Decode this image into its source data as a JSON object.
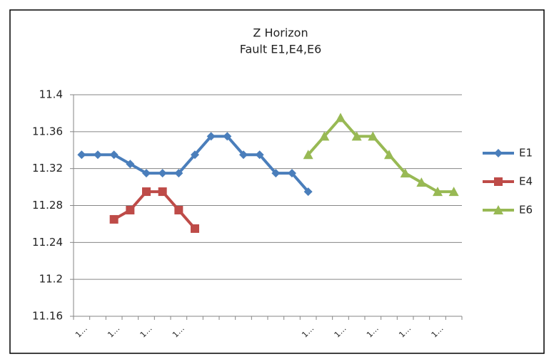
{
  "chart_data": {
    "type": "line",
    "title": "Z Horizon",
    "subtitle": "Fault E1,E4,E6",
    "categories": [
      "1…",
      null,
      "1…",
      null,
      "1…",
      null,
      "1…",
      null,
      null,
      null,
      null,
      null,
      null,
      null,
      "1…",
      null,
      "1…",
      null,
      "1…",
      null,
      "1…",
      null,
      "1…",
      null
    ],
    "series": [
      {
        "name": "E1",
        "color": "#4a7ebb",
        "marker": "diamond",
        "values": [
          11.335,
          11.335,
          11.335,
          11.325,
          11.315,
          11.315,
          11.315,
          11.335,
          11.355,
          11.355,
          11.335,
          11.335,
          11.315,
          11.315,
          11.295,
          null,
          null,
          null,
          null,
          null,
          null,
          null,
          null,
          null
        ]
      },
      {
        "name": "E4",
        "color": "#be4b48",
        "marker": "square",
        "values": [
          null,
          null,
          11.265,
          11.275,
          11.295,
          11.295,
          11.275,
          11.255,
          null,
          null,
          null,
          null,
          null,
          null,
          null,
          null,
          null,
          null,
          null,
          null,
          null,
          null,
          null,
          null
        ]
      },
      {
        "name": "E6",
        "color": "#98b954",
        "marker": "triangle",
        "values": [
          null,
          null,
          null,
          null,
          null,
          null,
          null,
          null,
          null,
          null,
          null,
          null,
          null,
          null,
          11.335,
          11.355,
          11.375,
          11.355,
          11.355,
          11.335,
          11.315,
          11.305,
          11.295,
          11.295
        ]
      }
    ],
    "ylim": [
      11.16,
      11.4
    ],
    "yticks": [
      11.16,
      11.2,
      11.24,
      11.28,
      11.32,
      11.36,
      11.4
    ],
    "grid": true,
    "legend": "right"
  }
}
